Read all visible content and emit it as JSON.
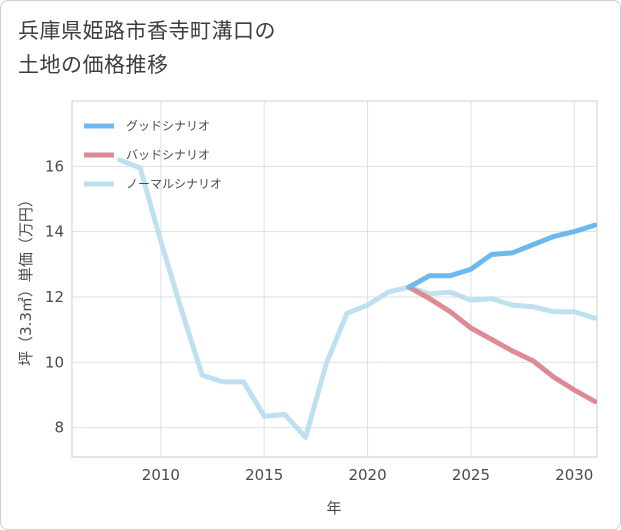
{
  "title_lines": [
    "兵庫県姫路市香寺町溝口の",
    "土地の価格推移"
  ],
  "chart_data": {
    "type": "line",
    "xlabel": "年",
    "ylabel": "坪（3.3㎡）単価（万円）",
    "xlim": [
      2005.7,
      2031.1
    ],
    "ylim": [
      7.1,
      18.0
    ],
    "xticks": [
      2010,
      2015,
      2020,
      2025,
      2030
    ],
    "yticks": [
      8,
      10,
      12,
      14,
      16
    ],
    "grid": true,
    "legend_position": "top-left",
    "series": [
      {
        "name": "グッドシナリオ",
        "color": "#6cb8ef",
        "x": [
          2022,
          2023,
          2024,
          2025,
          2026,
          2027,
          2028,
          2029,
          2030,
          2031
        ],
        "y": [
          12.3,
          12.65,
          12.65,
          12.85,
          13.3,
          13.35,
          13.6,
          13.85,
          14.0,
          14.2
        ]
      },
      {
        "name": "バッドシナリオ",
        "color": "#dd8a92",
        "x": [
          2022,
          2023,
          2024,
          2025,
          2026,
          2027,
          2028,
          2029,
          2030,
          2031
        ],
        "y": [
          12.3,
          11.95,
          11.55,
          11.05,
          10.7,
          10.35,
          10.05,
          9.55,
          9.15,
          8.8
        ]
      },
      {
        "name": "ノーマルシナリオ",
        "color": "#bfe0ef",
        "x": [
          2008,
          2009,
          2010,
          2011,
          2012,
          2013,
          2014,
          2015,
          2016,
          2017,
          2018,
          2019,
          2020,
          2021,
          2022,
          2023,
          2024,
          2025,
          2026,
          2027,
          2028,
          2029,
          2030,
          2031
        ],
        "y": [
          16.2,
          15.95,
          13.7,
          11.6,
          9.6,
          9.4,
          9.4,
          8.35,
          8.4,
          7.7,
          9.95,
          11.5,
          11.75,
          12.15,
          12.3,
          12.1,
          12.15,
          11.9,
          11.95,
          11.75,
          11.7,
          11.55,
          11.55,
          11.35
        ]
      }
    ]
  }
}
